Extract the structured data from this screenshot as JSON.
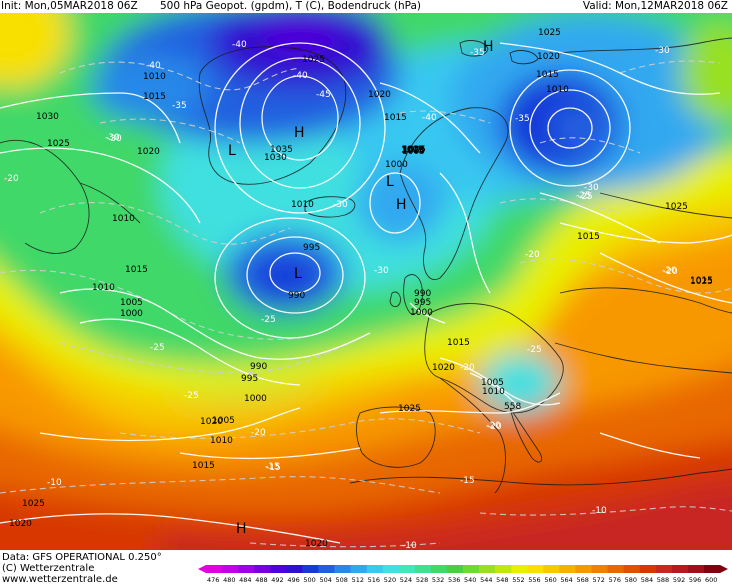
{
  "header": {
    "init": "Init: Mon,05MAR2018 06Z",
    "title": "500 hPa Geopot. (gpdm), T (C), Bodendruck (hPa)",
    "valid": "Valid: Mon,12MAR2018 06Z"
  },
  "footer": {
    "data": "Data: GFS OPERATIONAL 0.250°",
    "copyright": "(C) Wetterzentrale",
    "url": "www.wetterzentrale.de"
  },
  "colors": {
    "land_outline": "#1a1a1a",
    "isobar": "#ffffff",
    "isotherm": "#cfcfcf"
  },
  "colorbar": {
    "labels": [
      "476",
      "480",
      "484",
      "488",
      "492",
      "496",
      "500",
      "504",
      "508",
      "512",
      "516",
      "520",
      "524",
      "528",
      "532",
      "536",
      "540",
      "544",
      "548",
      "552",
      "556",
      "560",
      "564",
      "568",
      "572",
      "576",
      "580",
      "584",
      "588",
      "592",
      "596",
      "600"
    ],
    "colors": [
      "#e000e0",
      "#c400e8",
      "#a000e8",
      "#7800e0",
      "#5000d8",
      "#3010d0",
      "#1838d8",
      "#2060e0",
      "#2888e8",
      "#30a8f0",
      "#38c8f0",
      "#40e0e0",
      "#40e8b8",
      "#40e090",
      "#40d868",
      "#48d040",
      "#70d830",
      "#98e020",
      "#c0e810",
      "#e8f000",
      "#f8e000",
      "#f8c800",
      "#f8b000",
      "#f89800",
      "#f08000",
      "#e86800",
      "#e05000",
      "#d83800",
      "#c82820",
      "#b81820",
      "#a01018",
      "#800010"
    ]
  },
  "map_labels": {
    "pressure_centers": [
      {
        "id": "H-greenland",
        "text": "H"
      },
      {
        "id": "L-greenland",
        "text": "L"
      },
      {
        "id": "H-scandinavia-top",
        "text": "H"
      },
      {
        "id": "L-norwegian",
        "text": "L"
      },
      {
        "id": "H-norwegian",
        "text": "H"
      },
      {
        "id": "L-atlantic",
        "text": "L"
      },
      {
        "id": "H-sahara",
        "text": "H"
      }
    ],
    "isobars": [
      {
        "id": "i1",
        "text": "1025"
      },
      {
        "id": "i2",
        "text": "1020"
      },
      {
        "id": "i3",
        "text": "1015"
      },
      {
        "id": "i4",
        "text": "1010"
      },
      {
        "id": "i5",
        "text": "1010"
      },
      {
        "id": "i6",
        "text": "1015"
      },
      {
        "id": "i7",
        "text": "1030"
      },
      {
        "id": "i8",
        "text": "1025"
      },
      {
        "id": "i9",
        "text": "1020"
      },
      {
        "id": "i10",
        "text": "1035"
      },
      {
        "id": "i11",
        "text": "1030"
      },
      {
        "id": "i12",
        "text": "1025"
      },
      {
        "id": "i13",
        "text": "1020"
      },
      {
        "id": "i14",
        "text": "1015"
      },
      {
        "id": "i15",
        "text": "1005"
      },
      {
        "id": "i16",
        "text": "1000"
      },
      {
        "id": "i17",
        "text": "1010"
      },
      {
        "id": "i18",
        "text": "995"
      },
      {
        "id": "i19",
        "text": "990"
      },
      {
        "id": "i20",
        "text": "1015"
      },
      {
        "id": "i21",
        "text": "1010"
      },
      {
        "id": "i22",
        "text": "1005"
      },
      {
        "id": "i23",
        "text": "1000"
      },
      {
        "id": "i24",
        "text": "990"
      },
      {
        "id": "i25",
        "text": "995"
      },
      {
        "id": "i26",
        "text": "1000"
      },
      {
        "id": "i27",
        "text": "1005"
      },
      {
        "id": "i28",
        "text": "1010"
      },
      {
        "id": "i29",
        "text": "1015"
      },
      {
        "id": "i30",
        "text": "1020"
      },
      {
        "id": "i31",
        "text": "990"
      },
      {
        "id": "i32",
        "text": "995"
      },
      {
        "id": "i33",
        "text": "1000"
      },
      {
        "id": "i34",
        "text": "1015"
      },
      {
        "id": "i35",
        "text": "1020"
      },
      {
        "id": "i36",
        "text": "1005"
      },
      {
        "id": "i37",
        "text": "1010"
      },
      {
        "id": "i38",
        "text": "1025"
      },
      {
        "id": "i39",
        "text": "1025"
      },
      {
        "id": "i40",
        "text": "1020"
      },
      {
        "id": "i41",
        "text": "1015"
      },
      {
        "id": "i42",
        "text": "1010"
      },
      {
        "id": "i43",
        "text": "1025"
      },
      {
        "id": "i44",
        "text": "1015"
      },
      {
        "id": "i45",
        "text": "1020"
      },
      {
        "id": "i46",
        "text": "1020"
      },
      {
        "id": "i47",
        "text": "1025"
      },
      {
        "id": "i48",
        "text": "1020"
      },
      {
        "id": "i49",
        "text": "1005"
      },
      {
        "id": "i50",
        "text": "1015"
      },
      {
        "id": "i51",
        "text": "1005"
      }
    ],
    "isotherms": [
      {
        "id": "t1",
        "text": "-40"
      },
      {
        "id": "t2",
        "text": "-40"
      },
      {
        "id": "t3",
        "text": "-35"
      },
      {
        "id": "t4",
        "text": "-40"
      },
      {
        "id": "t5",
        "text": "-45"
      },
      {
        "id": "t6",
        "text": "-40"
      },
      {
        "id": "t7",
        "text": "-35"
      },
      {
        "id": "t8",
        "text": "-30"
      },
      {
        "id": "t9",
        "text": "-30"
      },
      {
        "id": "t10",
        "text": "-35"
      },
      {
        "id": "t11",
        "text": "-30"
      },
      {
        "id": "t12",
        "text": "-30"
      },
      {
        "id": "t13",
        "text": "-25"
      },
      {
        "id": "t14",
        "text": "-25"
      },
      {
        "id": "t15",
        "text": "-25"
      },
      {
        "id": "t16",
        "text": "-20"
      },
      {
        "id": "t17",
        "text": "-30"
      },
      {
        "id": "t18",
        "text": "-25"
      },
      {
        "id": "t19",
        "text": "-25"
      },
      {
        "id": "t20",
        "text": "-20"
      },
      {
        "id": "t21",
        "text": "-20"
      },
      {
        "id": "t22",
        "text": "-20"
      },
      {
        "id": "t23",
        "text": "-15"
      },
      {
        "id": "t24",
        "text": "-15"
      },
      {
        "id": "t25",
        "text": "-10"
      },
      {
        "id": "t26",
        "text": "-10"
      },
      {
        "id": "t27",
        "text": "-10"
      },
      {
        "id": "t28",
        "text": "-20"
      },
      {
        "id": "t29",
        "text": "-20"
      },
      {
        "id": "t30",
        "text": "-25"
      },
      {
        "id": "t31",
        "text": "-30"
      },
      {
        "id": "t32",
        "text": "-15"
      },
      {
        "id": "t33",
        "text": "-20"
      },
      {
        "id": "t34",
        "text": "-20"
      }
    ],
    "contour_label": "558"
  }
}
